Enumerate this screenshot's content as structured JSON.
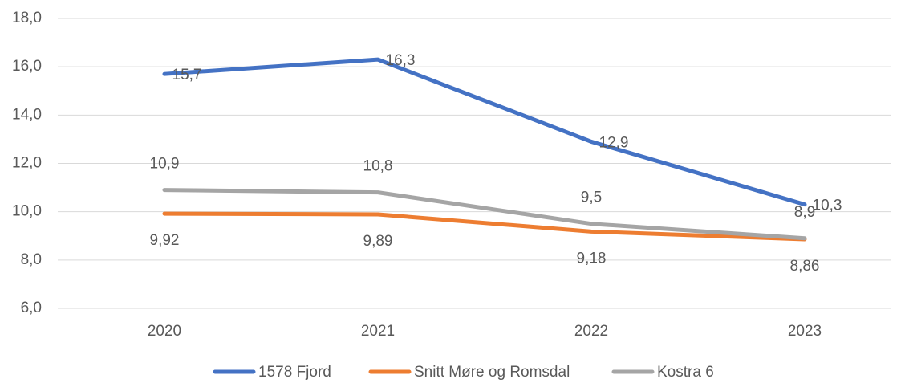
{
  "chart_data": {
    "type": "line",
    "categories": [
      "2020",
      "2021",
      "2022",
      "2023"
    ],
    "series": [
      {
        "name": "1578 Fjord",
        "color": "#4472c4",
        "values": [
          15.7,
          16.3,
          12.9,
          10.3
        ],
        "value_labels": [
          "15,7",
          "16,3",
          "12,9",
          "10,3"
        ]
      },
      {
        "name": "Snitt Møre og Romsdal",
        "color": "#ed7d31",
        "values": [
          9.92,
          9.89,
          9.18,
          8.86
        ],
        "value_labels": [
          "9,92",
          "9,89",
          "9,18",
          "8,86"
        ]
      },
      {
        "name": "Kostra 6",
        "color": "#a5a5a5",
        "values": [
          10.9,
          10.8,
          9.5,
          8.9
        ],
        "value_labels": [
          "10,9",
          "10,8",
          "9,5",
          "8,9"
        ]
      }
    ],
    "ylim": [
      6,
      18
    ],
    "yticks": [
      {
        "value": 6,
        "label": "6,0"
      },
      {
        "value": 8,
        "label": "8,0"
      },
      {
        "value": 10,
        "label": "10,0"
      },
      {
        "value": 12,
        "label": "12,0"
      },
      {
        "value": 14,
        "label": "14,0"
      },
      {
        "value": 16,
        "label": "16,0"
      },
      {
        "value": 18,
        "label": "18,0"
      }
    ],
    "grid": true,
    "legend": "bottom"
  }
}
